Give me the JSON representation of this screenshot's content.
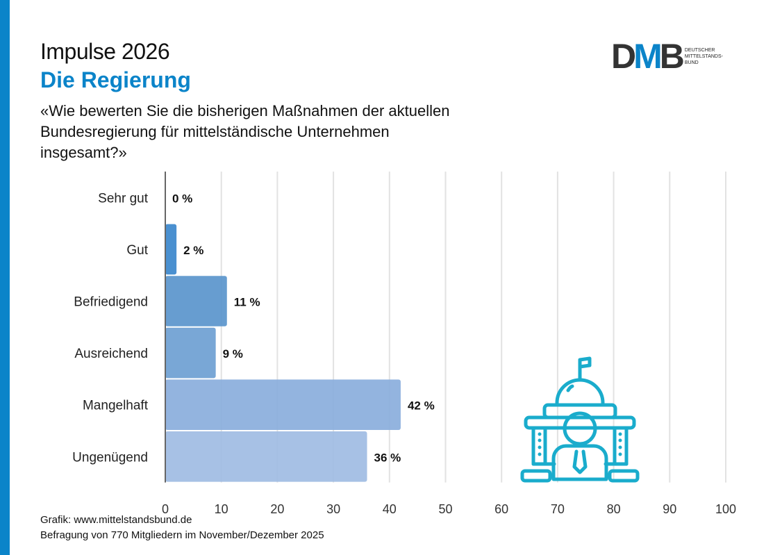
{
  "header": {
    "title": "Impulse 2026",
    "subtitle": "Die Regierung",
    "question": "«Wie bewerten Sie die bisherigen Maßnahmen der aktuellen Bundesregierung für mittelständische Unternehmen insgesamt?»"
  },
  "logo": {
    "letters": [
      "D",
      "M",
      "B"
    ],
    "text": [
      "DEUTSCHER",
      "MITTELSTANDS-",
      "BUND"
    ]
  },
  "footer": {
    "source": "Grafik: www.mittelstandsbund.de",
    "sample": "Befragung von 770 Mitgliedern im November/Dezember 2025"
  },
  "colors": {
    "accent": "#0b84c9",
    "icon": "#1aaccc"
  },
  "icon": "government-building-person-icon",
  "chart_data": {
    "type": "bar",
    "orientation": "horizontal",
    "categories": [
      "Sehr gut",
      "Gut",
      "Befriedigend",
      "Ausreichend",
      "Mangelhaft",
      "Ungenügend"
    ],
    "values": [
      0,
      2,
      11,
      9,
      42,
      36
    ],
    "data_labels": [
      "0 %",
      "2 %",
      "11 %",
      "9 %",
      "42 %",
      "36 %"
    ],
    "bar_colors": [
      "#2f7ec8",
      "#3b87cc",
      "#5a95cc",
      "#6e9fd3",
      "#8aaedc",
      "#a0bce3"
    ],
    "xlim": [
      0,
      100
    ],
    "xticks": [
      0,
      10,
      20,
      30,
      40,
      50,
      60,
      70,
      80,
      90,
      100
    ],
    "grid": true
  }
}
